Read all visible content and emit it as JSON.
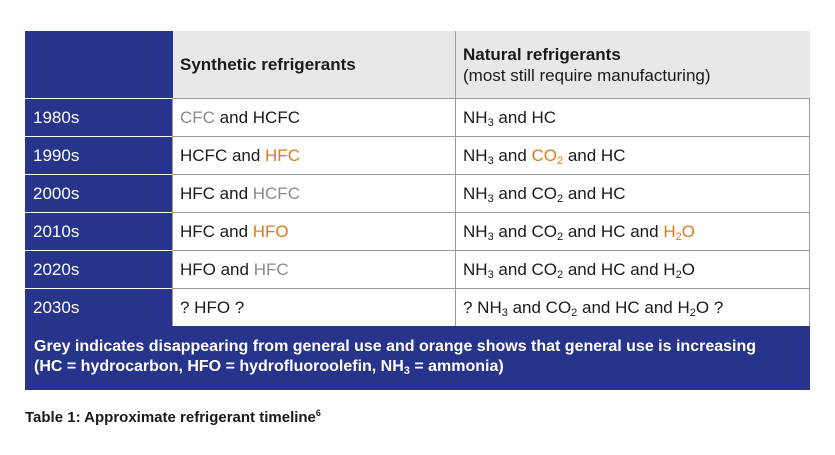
{
  "header": {
    "synthetic": "Synthetic refrigerants",
    "natural": "Natural refrigerants",
    "natural_sub": "(most still require manufacturing)"
  },
  "legend": {
    "grey_color": "#8a8a8a",
    "orange_color": "#e07b1a",
    "accent_color": "#27348b"
  },
  "rows": [
    {
      "decade": "1980s",
      "synthetic": [
        {
          "t": "CFC",
          "s": "grey"
        },
        {
          "t": " and HCFC"
        }
      ],
      "natural": [
        {
          "t": "NH"
        },
        {
          "t": "3",
          "sub": true
        },
        {
          "t": " and HC"
        }
      ]
    },
    {
      "decade": "1990s",
      "synthetic": [
        {
          "t": "HCFC and "
        },
        {
          "t": "HFC",
          "s": "orange"
        }
      ],
      "natural": [
        {
          "t": "NH"
        },
        {
          "t": "3",
          "sub": true
        },
        {
          "t": " and "
        },
        {
          "t": "CO",
          "s": "orange"
        },
        {
          "t": "2",
          "sub": true,
          "s": "orange"
        },
        {
          "t": " and HC"
        }
      ]
    },
    {
      "decade": "2000s",
      "synthetic": [
        {
          "t": "HFC and "
        },
        {
          "t": "HCFC",
          "s": "grey"
        }
      ],
      "natural": [
        {
          "t": "NH"
        },
        {
          "t": "3",
          "sub": true
        },
        {
          "t": " and CO"
        },
        {
          "t": "2",
          "sub": true
        },
        {
          "t": " and HC"
        }
      ]
    },
    {
      "decade": "2010s",
      "synthetic": [
        {
          "t": "HFC and "
        },
        {
          "t": "HFO",
          "s": "orange"
        }
      ],
      "natural": [
        {
          "t": "NH"
        },
        {
          "t": "3",
          "sub": true
        },
        {
          "t": " and CO"
        },
        {
          "t": "2",
          "sub": true
        },
        {
          "t": " and HC and "
        },
        {
          "t": "H",
          "s": "orange"
        },
        {
          "t": "2",
          "sub": true,
          "s": "orange"
        },
        {
          "t": "O",
          "s": "orange"
        }
      ]
    },
    {
      "decade": "2020s",
      "synthetic": [
        {
          "t": "HFO and "
        },
        {
          "t": "HFC",
          "s": "grey"
        }
      ],
      "natural": [
        {
          "t": "NH"
        },
        {
          "t": "3",
          "sub": true
        },
        {
          "t": " and CO"
        },
        {
          "t": "2",
          "sub": true
        },
        {
          "t": " and HC and H"
        },
        {
          "t": "2",
          "sub": true
        },
        {
          "t": "O"
        }
      ]
    },
    {
      "decade": "2030s",
      "synthetic": [
        {
          "t": "? HFO ?"
        }
      ],
      "natural": [
        {
          "t": "? NH"
        },
        {
          "t": "3",
          "sub": true
        },
        {
          "t": " and CO"
        },
        {
          "t": "2",
          "sub": true
        },
        {
          "t": " and HC and H"
        },
        {
          "t": "2",
          "sub": true
        },
        {
          "t": "O ?"
        }
      ]
    }
  ],
  "footnote": {
    "line1": "Grey indicates disappearing from general use and orange shows that general use is increasing",
    "line2_a": "(HC = hydrocarbon, HFO = hydrofluoroolefin, NH",
    "line2_sub": "3",
    "line2_b": " = ammonia)"
  },
  "caption": {
    "text": "Table 1: Approximate refrigerant timeline",
    "ref": "6"
  }
}
